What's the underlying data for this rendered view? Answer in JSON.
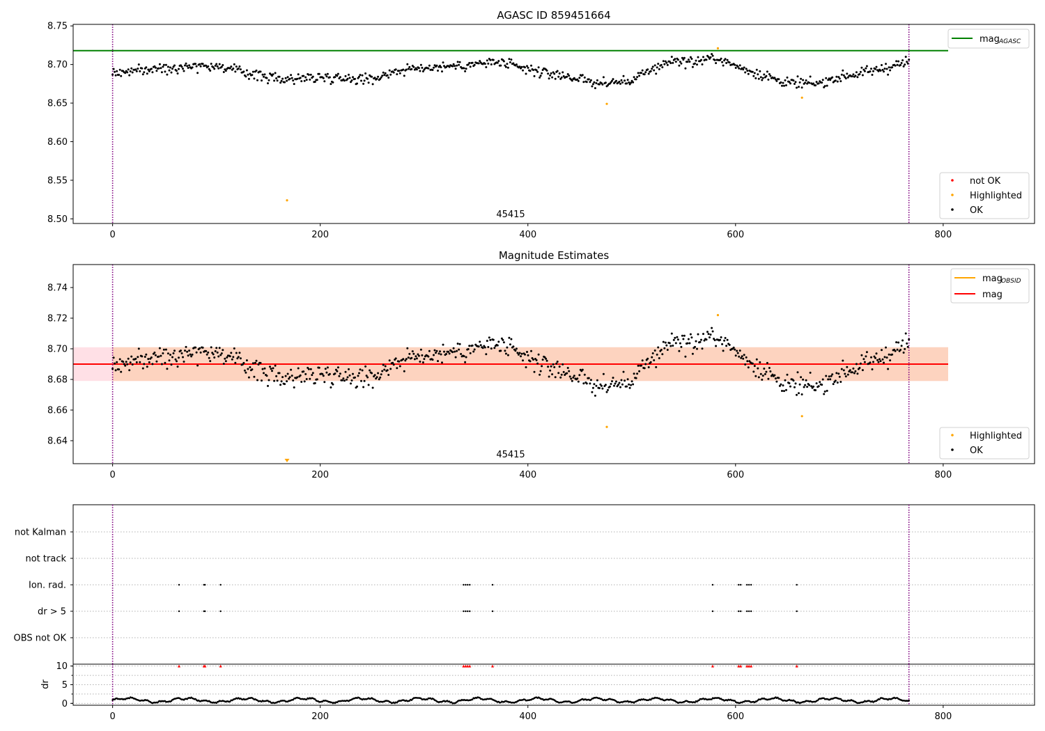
{
  "chart_data": [
    {
      "type": "scatter",
      "title": "AGASC ID 859451664",
      "annotation": "45415",
      "xlim": [
        -38,
        888
      ],
      "ylim": [
        8.494,
        8.752
      ],
      "xticks": [
        "0",
        "200",
        "400",
        "600",
        "800"
      ],
      "yticks": [
        "8.50",
        "8.55",
        "8.60",
        "8.65",
        "8.70",
        "8.75"
      ],
      "lines": [
        {
          "name": "mag",
          "subscript": "AGASC",
          "y": 8.718,
          "color": "#008000"
        }
      ],
      "vlines": [
        0,
        767
      ],
      "legend_points": [
        "not OK",
        "Highlighted",
        "OK"
      ],
      "highlighted": [
        {
          "x": 168,
          "y": 8.524
        },
        {
          "x": 476,
          "y": 8.649
        },
        {
          "x": 583,
          "y": 8.721
        },
        {
          "x": 664,
          "y": 8.657
        }
      ],
      "trend": {
        "x": [
          0,
          40,
          80,
          100,
          130,
          160,
          210,
          250,
          270,
          300,
          340,
          370,
          400,
          440,
          470,
          500,
          520,
          540,
          560,
          580,
          600,
          620,
          650,
          680,
          700,
          730,
          760,
          767
        ],
        "y": [
          8.689,
          8.694,
          8.699,
          8.698,
          8.689,
          8.681,
          8.684,
          8.681,
          8.691,
          8.696,
          8.699,
          8.703,
          8.693,
          8.684,
          8.675,
          8.679,
          8.694,
          8.706,
          8.703,
          8.709,
          8.698,
          8.689,
          8.676,
          8.675,
          8.684,
          8.691,
          8.701,
          8.703
        ]
      },
      "n_points": 760,
      "scatter_noise": 0.0085
    },
    {
      "type": "scatter",
      "title": "Magnitude Estimates",
      "annotation": "45415",
      "xlim": [
        -38,
        888
      ],
      "ylim": [
        8.625,
        8.755
      ],
      "xticks": [
        "0",
        "200",
        "400",
        "600",
        "800"
      ],
      "yticks": [
        "8.64",
        "8.66",
        "8.68",
        "8.70",
        "8.72",
        "8.74"
      ],
      "lines": [
        {
          "name": "mag",
          "subscript": "OBSID",
          "color": "#ffa500"
        },
        {
          "name": "mag",
          "y": 8.69,
          "color": "#ff0000"
        }
      ],
      "band": {
        "y0": 8.679,
        "y1": 8.701
      },
      "vlines": [
        0,
        767
      ],
      "legend_points": [
        "Highlighted",
        "OK"
      ],
      "highlighted": [
        {
          "x": 476,
          "y": 8.649
        },
        {
          "x": 583,
          "y": 8.722
        },
        {
          "x": 664,
          "y": 8.656
        }
      ],
      "off_scale_marker": {
        "x": 168
      },
      "trend": {
        "x": [
          0,
          40,
          80,
          100,
          130,
          160,
          210,
          250,
          270,
          300,
          340,
          370,
          400,
          440,
          470,
          500,
          520,
          540,
          560,
          580,
          600,
          620,
          650,
          680,
          700,
          730,
          760,
          767
        ],
        "y": [
          8.689,
          8.694,
          8.699,
          8.698,
          8.689,
          8.681,
          8.684,
          8.681,
          8.691,
          8.696,
          8.699,
          8.703,
          8.693,
          8.684,
          8.675,
          8.679,
          8.694,
          8.706,
          8.703,
          8.709,
          8.698,
          8.689,
          8.676,
          8.675,
          8.684,
          8.691,
          8.701,
          8.703
        ]
      },
      "n_points": 760,
      "scatter_noise": 0.0085
    },
    {
      "type": "scatter",
      "xlim": [
        -38,
        888
      ],
      "categories": [
        "not Kalman",
        "not track",
        "Ion. rad.",
        "dr > 5",
        "OBS not OK"
      ],
      "vlines": [
        0,
        767
      ],
      "flag_x": [
        64,
        88,
        89,
        104,
        338,
        340,
        342,
        344,
        366,
        578,
        603,
        605,
        611,
        613,
        615,
        659
      ],
      "xticks": [
        "0",
        "200",
        "400",
        "600",
        "800"
      ]
    },
    {
      "type": "line",
      "ylabel": "dr",
      "xlim": [
        -38,
        888
      ],
      "ylim": [
        -0.5,
        10.5
      ],
      "yticks": [
        "0",
        "5",
        "10"
      ],
      "xticks": [
        "0",
        "200",
        "400",
        "600",
        "800"
      ],
      "vlines": [
        0,
        767
      ],
      "flag_x": [
        64,
        88,
        89,
        104,
        338,
        340,
        342,
        344,
        366,
        578,
        603,
        605,
        611,
        613,
        615,
        659
      ],
      "n_points": 760
    }
  ],
  "colors": {
    "ok": "#000000",
    "highlighted": "#ffa500",
    "not_ok": "#ff0000",
    "agasc_line": "#008000",
    "mag_line": "#ff0000",
    "obsid_line": "#ffa500",
    "band_pink": "#ffe0e6",
    "band_orange": "#fdd3bf",
    "vline": "#800080",
    "grid": "#b0b0b0"
  }
}
